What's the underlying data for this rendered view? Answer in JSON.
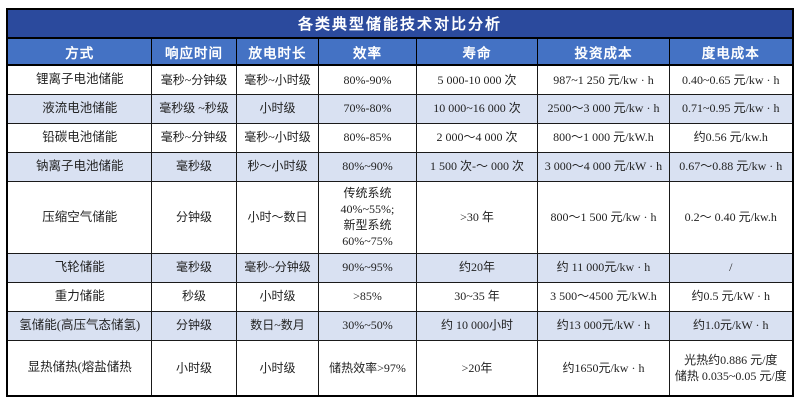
{
  "title": "各类典型储能技术对比分析",
  "colors": {
    "title_bg": "#2B4A9D",
    "header_bg": "#4472C4",
    "row_alt_bg": "#D9E1F2",
    "row_bg": "#FFFFFF",
    "border": "#000000",
    "header_text": "#FFFFFF",
    "body_text": "#222222"
  },
  "chart_data": {
    "type": "table",
    "title": "各类典型储能技术对比分析",
    "columns": [
      "方式",
      "响应时间",
      "放电时长",
      "效率",
      "寿命",
      "投资成本",
      "度电成本"
    ],
    "rows": [
      [
        "锂离子电池储能",
        "毫秒~分钟级",
        "毫秒~小时级",
        "80%-90%",
        "5 000-10 000 次",
        "987~1 250 元/kw · h",
        "0.40~0.65 元/kw · h"
      ],
      [
        "液流电池储能",
        "毫秒级 ~秒级",
        "小时级",
        "70%-80%",
        "10 000~16 000 次",
        "2500～3 000 元/kw · h",
        "0.71~0.95 元/kw · h"
      ],
      [
        "铅碳电池储能",
        "毫秒~分钟级",
        "毫秒~小时级",
        "80%-85%",
        "2 000～4 000 次",
        "800～1 000 元/kW.h",
        "约0.56 元/kw.h"
      ],
      [
        "钠离子电池储能",
        "毫秒级",
        "秒～小时级",
        "80%~90%",
        "1 500 次-～ 000 次",
        "3 000～4 000 元/kW · h",
        "0.67～0.88 元/kw · h"
      ],
      [
        "压缩空气储能",
        "分钟级",
        "小时～数日",
        "传统系统\n40%~55%;\n新型系统\n60%~75%",
        ">30 年",
        "800～1 500 元/kw · h",
        "0.2～ 0.40 元/kw.h"
      ],
      [
        "飞轮储能",
        "毫秒级",
        "毫秒~分钟级",
        "90%~95%",
        "约20年",
        "约 11 000元/kw · h",
        "/"
      ],
      [
        "重力储能",
        "秒级",
        "小时级",
        ">85%",
        "30~35 年",
        "3 500～4500 元/kW.h",
        "约0.5 元/kW · h"
      ],
      [
        "氢储能(高压气态储氢)",
        "分钟级",
        "数日~数月",
        "30%~50%",
        "约 10 000小时",
        "约13 000元/kW · h",
        "约1.0元/kW · h"
      ],
      [
        "显热储热(熔盐储热",
        "小时级",
        "小时级",
        "储热效率>97%",
        ">20年",
        "约1650元/kw · h",
        "光热约0.886 元/度\n储热 0.035~0.05 元/度"
      ]
    ]
  }
}
